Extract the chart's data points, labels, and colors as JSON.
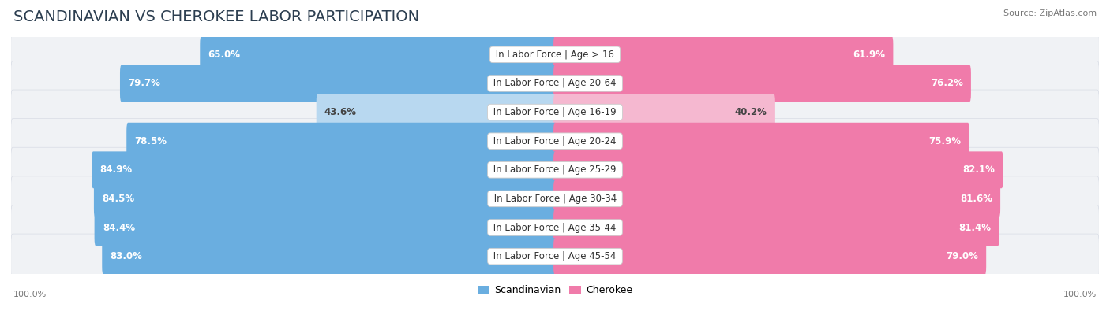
{
  "title": "SCANDINAVIAN VS CHEROKEE LABOR PARTICIPATION",
  "source": "Source: ZipAtlas.com",
  "categories": [
    "In Labor Force | Age > 16",
    "In Labor Force | Age 20-64",
    "In Labor Force | Age 16-19",
    "In Labor Force | Age 20-24",
    "In Labor Force | Age 25-29",
    "In Labor Force | Age 30-34",
    "In Labor Force | Age 35-44",
    "In Labor Force | Age 45-54"
  ],
  "scandinavian_values": [
    65.0,
    79.7,
    43.6,
    78.5,
    84.9,
    84.5,
    84.4,
    83.0
  ],
  "cherokee_values": [
    61.9,
    76.2,
    40.2,
    75.9,
    82.1,
    81.6,
    81.4,
    79.0
  ],
  "scandinavian_color_full": "#6AAEE0",
  "scandinavian_color_light": "#B8D8F0",
  "cherokee_color_full": "#F07BAA",
  "cherokee_color_light": "#F5B8D0",
  "row_bg": "#F0F2F5",
  "row_border": "#D8DCE5",
  "max_value": 100.0,
  "title_fontsize": 14,
  "label_fontsize": 8.5,
  "value_fontsize": 8.5,
  "legend_fontsize": 9,
  "bg_color": "#FFFFFF",
  "bar_height": 0.72,
  "row_padding": 0.14
}
